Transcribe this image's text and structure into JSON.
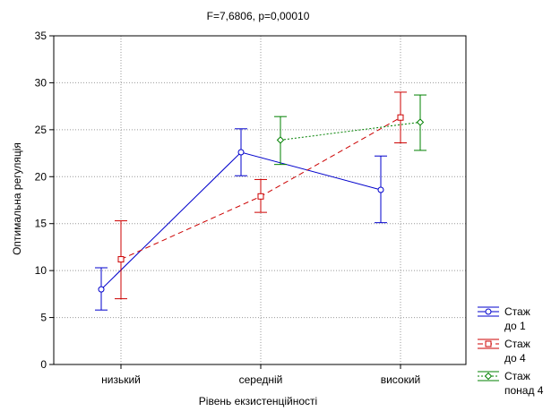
{
  "chart_data": {
    "type": "line",
    "title": "F=7,6806, p=0,00010",
    "xlabel": "Рівень екзистенційності",
    "ylabel": "Оптимальна регуляція",
    "categories": [
      "низький",
      "середній",
      "високий"
    ],
    "ylim": [
      0,
      35
    ],
    "yticks": [
      0,
      5,
      10,
      15,
      20,
      25,
      30,
      35
    ],
    "grid": true,
    "legend_position": "bottom-right",
    "series": [
      {
        "name_lines": [
          "Стаж",
          "до 1"
        ],
        "color": "#0000cc",
        "line_style": "solid",
        "marker": "circle",
        "mean": [
          8.0,
          22.6,
          18.6
        ],
        "lower": [
          5.8,
          20.1,
          15.1
        ],
        "upper": [
          10.3,
          25.1,
          22.2
        ]
      },
      {
        "name_lines": [
          "Стаж",
          "до 4"
        ],
        "color": "#cc0000",
        "line_style": "dashed",
        "marker": "square",
        "mean": [
          11.2,
          17.9,
          26.3
        ],
        "lower": [
          7.0,
          16.2,
          23.6
        ],
        "upper": [
          15.3,
          19.7,
          29.0
        ]
      },
      {
        "name_lines": [
          "Стаж",
          "понад 4"
        ],
        "color": "#008000",
        "line_style": "dotted",
        "marker": "diamond",
        "mean": [
          null,
          23.9,
          25.8
        ],
        "lower": [
          null,
          21.3,
          22.8
        ],
        "upper": [
          null,
          26.4,
          28.7
        ]
      }
    ]
  }
}
